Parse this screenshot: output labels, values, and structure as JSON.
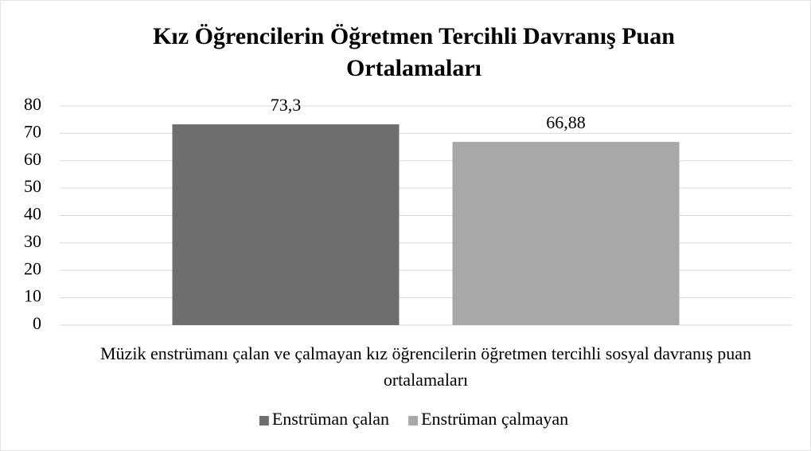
{
  "chart_data": {
    "type": "bar",
    "title": "Kız Öğrencilerin Öğretmen Tercihli Davranış Puan Ortalamaları",
    "categories": [
      "Müzik enstrümanı çalan ve çalmayan kız öğrencilerin öğretmen tercihli sosyal davranış puan ortalamaları"
    ],
    "series": [
      {
        "name": "Enstrüman çalan",
        "color": "#6e6e6e",
        "values": [
          73.3
        ],
        "value_labels": [
          "73,3"
        ]
      },
      {
        "name": "Enstrüman çalmayan",
        "color": "#a8a8a8",
        "values": [
          66.88
        ],
        "value_labels": [
          "66,88"
        ]
      }
    ],
    "ylim": [
      0,
      80
    ],
    "yticks": [
      0,
      10,
      20,
      30,
      40,
      50,
      60,
      70,
      80
    ],
    "grid": true,
    "legend": "bottom"
  }
}
